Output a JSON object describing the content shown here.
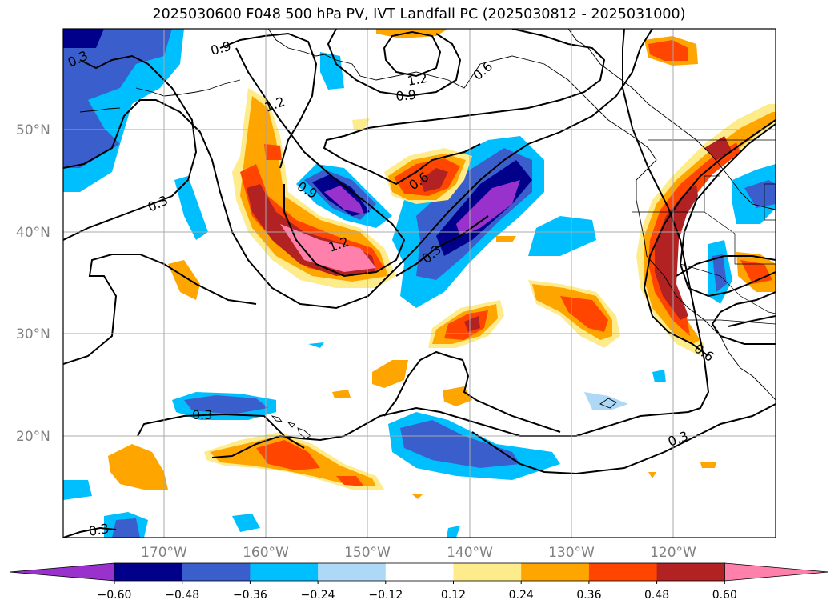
{
  "title": "2025030600 F048 500 hPa PV, IVT Landfall PC (2025030812 - 2025031000)",
  "map": {
    "lat_labels": [
      "50°N",
      "40°N",
      "30°N",
      "20°N"
    ],
    "lon_labels": [
      "170°W",
      "160°W",
      "150°W",
      "140°W",
      "130°W",
      "120°W"
    ],
    "contour_labels": [
      "0.3",
      "0.9",
      "1.2",
      "0.9",
      "1.2",
      "0.6",
      "0.3",
      "0.9",
      "0.6",
      "1.2",
      "0.3",
      "0.3",
      "0.6",
      "0.3",
      "0.3"
    ]
  },
  "colorbar": {
    "ticks": [
      "−0.60",
      "−0.48",
      "−0.36",
      "−0.24",
      "−0.12",
      "0.12",
      "0.24",
      "0.36",
      "0.48",
      "0.60"
    ],
    "colors": [
      "#9932cc",
      "#00008b",
      "#3a5fcd",
      "#00bfff",
      "#add8f6",
      "#ffffff",
      "#fdeb8c",
      "#ffa500",
      "#ff4500",
      "#b22222",
      "#ff80aa"
    ]
  }
}
